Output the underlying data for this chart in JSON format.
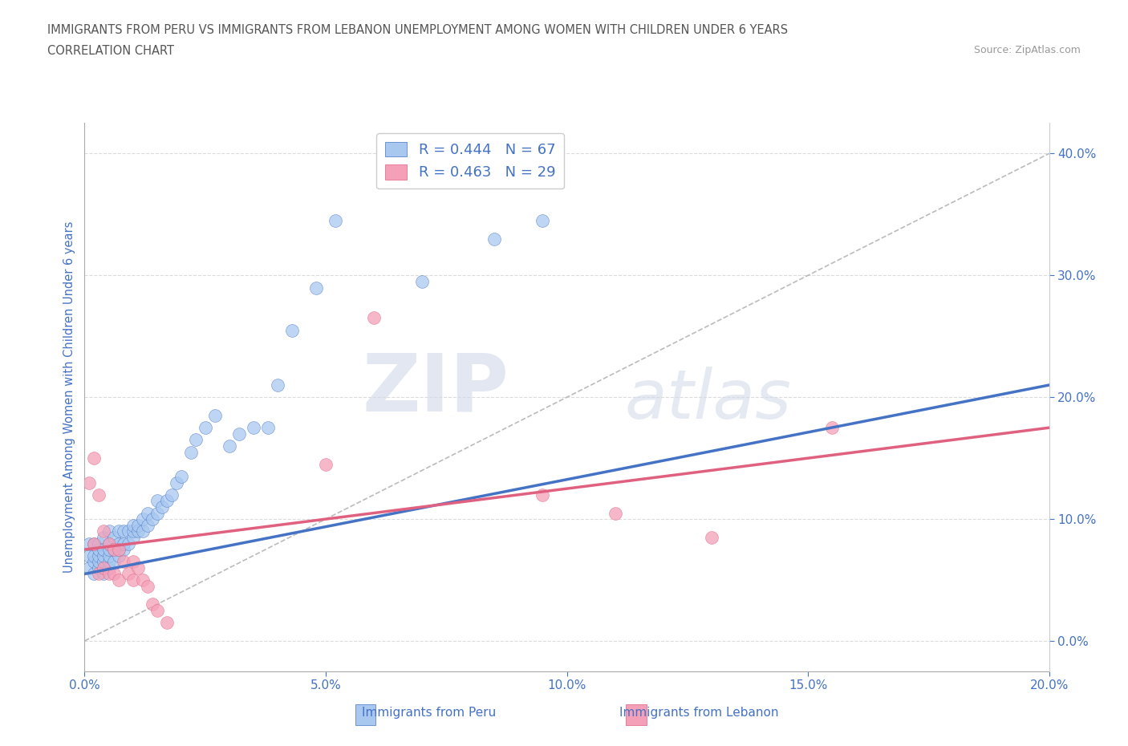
{
  "title_line1": "IMMIGRANTS FROM PERU VS IMMIGRANTS FROM LEBANON UNEMPLOYMENT AMONG WOMEN WITH CHILDREN UNDER 6 YEARS",
  "title_line2": "CORRELATION CHART",
  "source": "Source: ZipAtlas.com",
  "ylabel": "Unemployment Among Women with Children Under 6 years",
  "xlabel_legend1": "Immigrants from Peru",
  "xlabel_legend2": "Immigrants from Lebanon",
  "R_peru": 0.444,
  "N_peru": 67,
  "R_lebanon": 0.463,
  "N_lebanon": 29,
  "color_peru": "#A8C8F0",
  "color_lebanon": "#F4A0B8",
  "color_peru_line": "#4472C4",
  "color_lebanon_line": "#E06080",
  "color_text_blue": "#4472C4",
  "background_color": "#FFFFFF",
  "grid_color": "#CCCCCC",
  "xlim": [
    0.0,
    0.2
  ],
  "ylim": [
    -0.025,
    0.425
  ],
  "xticks": [
    0.0,
    0.05,
    0.1,
    0.15,
    0.2
  ],
  "yticks_right": [
    0.0,
    0.1,
    0.2,
    0.3,
    0.4
  ],
  "peru_x": [
    0.001,
    0.001,
    0.001,
    0.002,
    0.002,
    0.002,
    0.002,
    0.003,
    0.003,
    0.003,
    0.003,
    0.003,
    0.004,
    0.004,
    0.004,
    0.004,
    0.004,
    0.005,
    0.005,
    0.005,
    0.005,
    0.005,
    0.005,
    0.006,
    0.006,
    0.006,
    0.007,
    0.007,
    0.007,
    0.007,
    0.008,
    0.008,
    0.008,
    0.009,
    0.009,
    0.01,
    0.01,
    0.01,
    0.011,
    0.011,
    0.012,
    0.012,
    0.013,
    0.013,
    0.014,
    0.015,
    0.015,
    0.016,
    0.017,
    0.018,
    0.019,
    0.02,
    0.022,
    0.023,
    0.025,
    0.027,
    0.03,
    0.032,
    0.035,
    0.038,
    0.04,
    0.043,
    0.048,
    0.052,
    0.07,
    0.085,
    0.095
  ],
  "peru_y": [
    0.06,
    0.07,
    0.08,
    0.055,
    0.065,
    0.07,
    0.08,
    0.06,
    0.065,
    0.07,
    0.075,
    0.08,
    0.055,
    0.065,
    0.07,
    0.075,
    0.085,
    0.06,
    0.065,
    0.07,
    0.075,
    0.08,
    0.09,
    0.065,
    0.075,
    0.085,
    0.07,
    0.075,
    0.08,
    0.09,
    0.075,
    0.08,
    0.09,
    0.08,
    0.09,
    0.085,
    0.09,
    0.095,
    0.09,
    0.095,
    0.09,
    0.1,
    0.095,
    0.105,
    0.1,
    0.105,
    0.115,
    0.11,
    0.115,
    0.12,
    0.13,
    0.135,
    0.155,
    0.165,
    0.175,
    0.185,
    0.16,
    0.17,
    0.175,
    0.175,
    0.21,
    0.255,
    0.29,
    0.345,
    0.295,
    0.33,
    0.345
  ],
  "lebanon_x": [
    0.001,
    0.002,
    0.002,
    0.003,
    0.003,
    0.004,
    0.004,
    0.005,
    0.005,
    0.006,
    0.006,
    0.007,
    0.007,
    0.008,
    0.009,
    0.01,
    0.01,
    0.011,
    0.012,
    0.013,
    0.014,
    0.015,
    0.017,
    0.05,
    0.06,
    0.095,
    0.11,
    0.13,
    0.155
  ],
  "lebanon_y": [
    0.13,
    0.08,
    0.15,
    0.055,
    0.12,
    0.06,
    0.09,
    0.055,
    0.08,
    0.055,
    0.075,
    0.05,
    0.075,
    0.065,
    0.055,
    0.05,
    0.065,
    0.06,
    0.05,
    0.045,
    0.03,
    0.025,
    0.015,
    0.145,
    0.265,
    0.12,
    0.105,
    0.085,
    0.175
  ],
  "watermark_zip": "ZIP",
  "watermark_atlas": "atlas",
  "peru_trend": [
    0.0,
    0.055,
    0.2,
    0.21
  ],
  "lebanon_trend": [
    0.0,
    0.075,
    0.2,
    0.175
  ],
  "diag_line": [
    0.0,
    0.0,
    0.2,
    0.4
  ]
}
